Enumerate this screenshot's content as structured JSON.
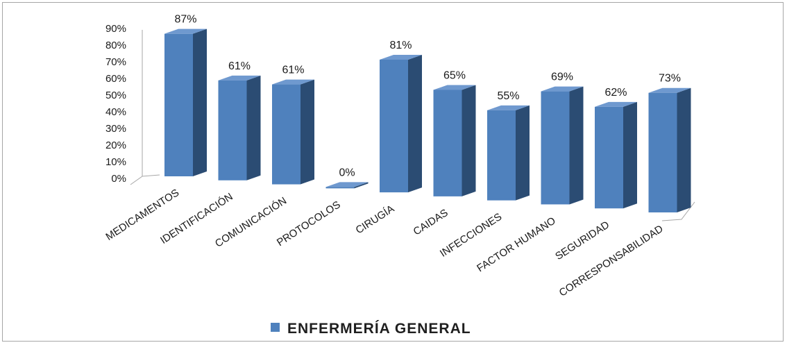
{
  "chart_data": {
    "type": "bar",
    "categories": [
      "MEDICAMENTOS",
      "IDENTIFICACIÓN",
      "COMUNICACIÓN",
      "PROTOCOLOS",
      "CIRUGÍA",
      "CAIDAS",
      "INFECCIONES",
      "FACTOR HUMANO",
      "SEGURIDAD",
      "CORRESPONSABILIDAD"
    ],
    "series": [
      {
        "name": "ENFERMERÍA GENERAL",
        "values": [
          87,
          61,
          61,
          0,
          81,
          65,
          55,
          69,
          62,
          73
        ]
      }
    ],
    "data_labels": [
      "87%",
      "61%",
      "61%",
      "0%",
      "81%",
      "65%",
      "55%",
      "69%",
      "62%",
      "73%"
    ],
    "y_ticks": [
      "0%",
      "10%",
      "20%",
      "30%",
      "40%",
      "50%",
      "60%",
      "70%",
      "80%",
      "90%"
    ],
    "ylim": [
      0,
      90
    ],
    "grid": false,
    "legend_position": "bottom",
    "style": "3d-column",
    "colors": {
      "front": "#4f81bd",
      "side": "#2b4c73",
      "top": "#6f99cf",
      "floor": "#a6a6a6"
    }
  }
}
